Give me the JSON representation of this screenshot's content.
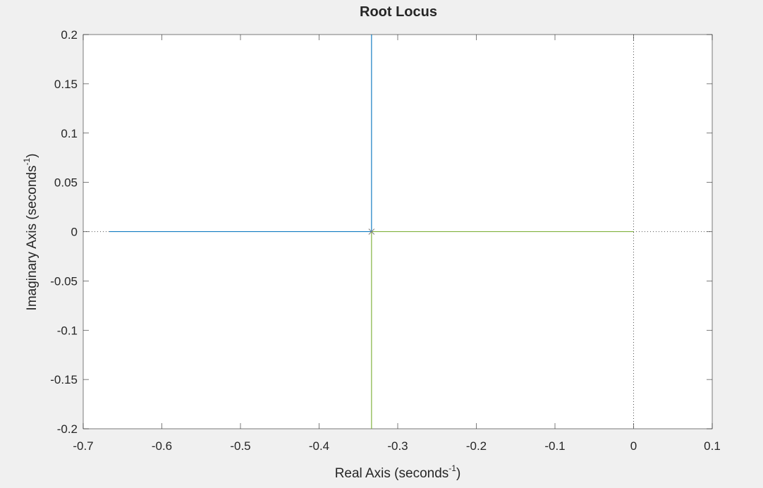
{
  "chart_data": {
    "type": "line",
    "title": "Root Locus",
    "xlabel": "Real Axis (seconds",
    "ylabel": "Imaginary Axis (seconds",
    "unit_exponent": "-1",
    "unit_close": ")",
    "xlim": [
      -0.7,
      0.1
    ],
    "ylim": [
      -0.2,
      0.2
    ],
    "xticks": [
      -0.7,
      -0.6,
      -0.5,
      -0.4,
      -0.3,
      -0.2,
      -0.1,
      0,
      0.1
    ],
    "xtick_labels": [
      "-0.7",
      "-0.6",
      "-0.5",
      "-0.4",
      "-0.3",
      "-0.2",
      "-0.1",
      "0",
      "0.1"
    ],
    "yticks": [
      0.2,
      0.15,
      0.1,
      0.05,
      0,
      -0.05,
      -0.1,
      -0.15,
      -0.2
    ],
    "ytick_labels": [
      "0.2",
      "0.15",
      "0.1",
      "0.05",
      "0",
      "-0.05",
      "-0.1",
      "-0.15",
      "-0.2"
    ],
    "grid": false,
    "reference_lines": {
      "x": 0,
      "y": 0,
      "style": "dotted",
      "color": "#262626"
    },
    "series": [
      {
        "color": "#0072bd",
        "segments": [
          [
            [
              -0.6667,
              0
            ],
            [
              -0.3333,
              0
            ]
          ],
          [
            [
              -0.3333,
              0
            ],
            [
              -0.3333,
              0.2
            ]
          ]
        ]
      },
      {
        "color": "#77ac30",
        "segments": [
          [
            [
              -0.3333,
              0
            ],
            [
              0,
              0
            ]
          ],
          [
            [
              -0.3333,
              0
            ],
            [
              -0.3333,
              -0.2
            ]
          ]
        ]
      }
    ],
    "poles": [
      [
        -0.3333,
        0
      ]
    ],
    "pole_marker": "x",
    "pole_color": "#7f7f7f"
  }
}
